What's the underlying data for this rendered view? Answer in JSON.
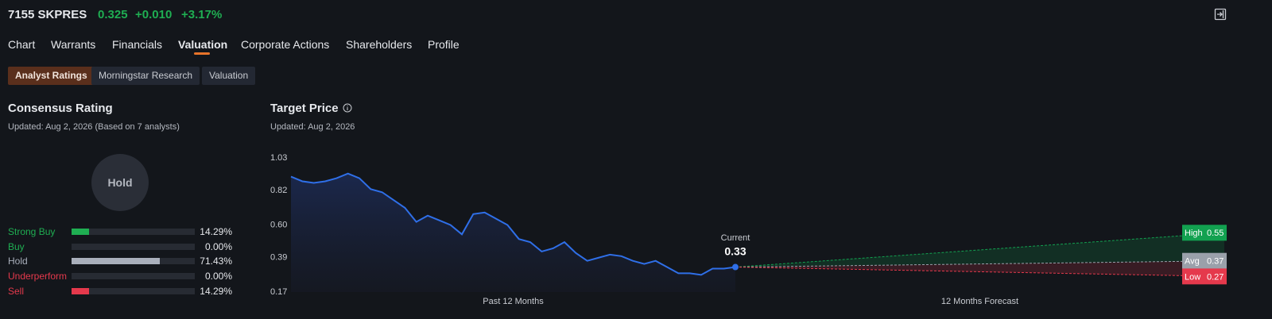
{
  "header": {
    "ticker": "7155 SKPRES",
    "price": "0.325",
    "change": "+0.010",
    "change_pct": "+3.17%"
  },
  "tabs": [
    "Chart",
    "Warrants",
    "Financials",
    "Valuation",
    "Corporate Actions",
    "Shareholders",
    "Profile"
  ],
  "subtabs": [
    "Analyst Ratings",
    "Morningstar Research",
    "Valuation"
  ],
  "consensus": {
    "title": "Consensus Rating",
    "updated": "Updated: Aug 2, 2026 (Based on 7 analysts)",
    "rating": "Hold",
    "categories": [
      "Strong Buy",
      "Buy",
      "Hold",
      "Underperform",
      "Sell"
    ],
    "values": [
      14.29,
      0,
      71.43,
      0,
      14.29
    ],
    "value_labels": [
      "14.29%",
      "0.00%",
      "71.43%",
      "0.00%",
      "14.29%"
    ],
    "label_colors": [
      "#1fae52",
      "#1fae52",
      "#a9afbb",
      "#e5394c",
      "#e5394c"
    ],
    "bar_colors": [
      "#1fae52",
      "#1fae52",
      "#a9afbb",
      "#e5394c",
      "#e5394c"
    ]
  },
  "target": {
    "title": "Target Price",
    "updated": "Updated: Aug 2, 2026"
  },
  "chart_data": {
    "type": "line",
    "color": "#2f6fe8",
    "ylim": [
      0.17,
      1.03
    ],
    "yticks": [
      1.03,
      0.82,
      {
        "value": 0.6,
        "label": "0.60"
      },
      0.39,
      0.17
    ],
    "values": [
      0.91,
      0.88,
      0.87,
      0.88,
      0.9,
      0.93,
      0.9,
      0.83,
      0.81,
      0.76,
      0.71,
      0.62,
      0.66,
      0.63,
      0.6,
      0.54,
      0.67,
      0.68,
      0.64,
      0.6,
      0.51,
      0.49,
      0.43,
      0.45,
      0.49,
      0.42,
      0.37,
      0.39,
      0.41,
      0.4,
      0.37,
      0.35,
      0.37,
      0.33,
      0.29,
      0.29,
      0.28,
      0.32,
      0.32,
      0.33
    ],
    "current_label": "Current",
    "current_value": 0.33,
    "forecast": [
      {
        "name": "High",
        "value": 0.55,
        "color": "#12a150"
      },
      {
        "name": "Avg",
        "value": 0.37,
        "color": "#9aa0aa"
      },
      {
        "name": "Low",
        "value": 0.27,
        "color": "#e5394c"
      }
    ],
    "x_labels": [
      "Past 12 Months",
      "12 Months Forecast"
    ]
  }
}
